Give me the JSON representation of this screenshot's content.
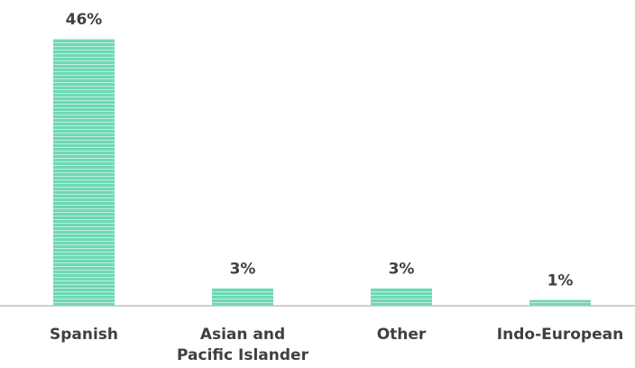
{
  "colors": {
    "bar": "#6dd8b4",
    "bar_stripe": "#ffffff",
    "axis": "#bfbfbf",
    "text": "#404040"
  },
  "chart_data": {
    "type": "bar",
    "title": "",
    "xlabel": "",
    "ylabel": "",
    "categories": [
      [
        "Spanish"
      ],
      [
        "Asian and",
        "Pacific Islander"
      ],
      [
        "Other"
      ],
      [
        "Indo-European"
      ]
    ],
    "values": [
      46,
      3,
      3,
      1
    ],
    "value_labels": [
      "46%",
      "3%",
      "3%",
      "1%"
    ],
    "ylim": [
      0,
      46
    ],
    "grid": false,
    "legend": "none"
  }
}
